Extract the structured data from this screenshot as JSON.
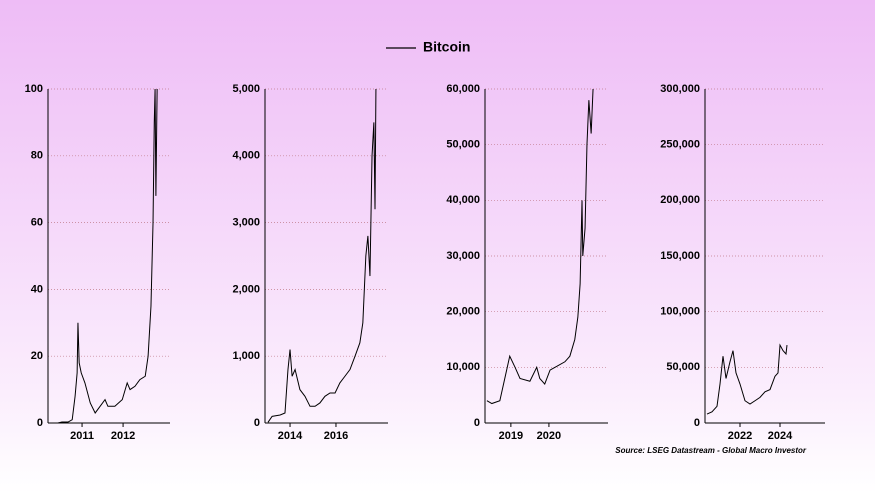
{
  "chart_data": [
    {
      "type": "line",
      "legend": "top",
      "grid": true,
      "series": [
        {
          "name": "Bitcoin",
          "color": "#000000",
          "x": [
            2010.27,
            2010.41,
            2010.51,
            2010.66,
            2010.76,
            2010.83,
            2010.88,
            2010.9,
            2010.93,
            2010.98,
            2011.07,
            2011.2,
            2011.32,
            2011.44,
            2011.56,
            2011.63,
            2011.8,
            2011.98,
            2012.1,
            2012.17,
            2012.29,
            2012.41,
            2012.54,
            2012.61,
            2012.68,
            2012.73,
            2012.76,
            2012.78,
            2012.8,
            2012.83
          ],
          "values": [
            0,
            0,
            0.3,
            0.3,
            1,
            8,
            15,
            30,
            18,
            15,
            12,
            6,
            3,
            5,
            7,
            5,
            5,
            7,
            12,
            10,
            11,
            13,
            14,
            20,
            35,
            60,
            90,
            100,
            68,
            100
          ]
        }
      ],
      "xlim": [
        2010.17,
        2012.9
      ],
      "xticks": [
        2011,
        2012
      ],
      "ylim": [
        0,
        100
      ],
      "yticks": [
        0,
        20,
        40,
        60,
        80,
        100
      ]
    },
    {
      "type": "line",
      "grid": true,
      "series": [
        {
          "color": "#000000",
          "x": [
            2013.04,
            2013.22,
            2013.57,
            2013.78,
            2013.91,
            2014,
            2014.09,
            2014.22,
            2014.43,
            2014.65,
            2014.87,
            2015.09,
            2015.3,
            2015.52,
            2015.74,
            2015.96,
            2016.17,
            2016.39,
            2016.61,
            2016.83,
            2017.04,
            2017.17,
            2017.3,
            2017.39,
            2017.48,
            2017.57,
            2017.65,
            2017.7,
            2017.74
          ],
          "values": [
            10,
            100,
            120,
            150,
            800,
            1100,
            700,
            800,
            500,
            400,
            250,
            250,
            300,
            400,
            450,
            450,
            600,
            700,
            800,
            1000,
            1200,
            1500,
            2500,
            2800,
            2200,
            4000,
            4500,
            3200,
            5000
          ]
        }
      ],
      "xlim": [
        2012.91,
        2017.83
      ],
      "xticks": [
        2014,
        2016
      ],
      "ylim": [
        0,
        5000
      ],
      "yticks": [
        0,
        {
          "value": 1000,
          "label": "1,000"
        },
        {
          "value": 2000,
          "label": "2,000"
        },
        {
          "value": 3000,
          "label": "3,000"
        },
        {
          "value": 4000,
          "label": "4,000"
        },
        {
          "value": 5000,
          "label": "5,000"
        }
      ]
    },
    {
      "type": "line",
      "grid": true,
      "series": [
        {
          "color": "#000000",
          "x": [
            2018.37,
            2018.5,
            2018.71,
            2018.84,
            2018.97,
            2019.11,
            2019.24,
            2019.5,
            2019.68,
            2019.76,
            2019.89,
            2020.03,
            2020.16,
            2020.42,
            2020.55,
            2020.68,
            2020.76,
            2020.82,
            2020.87,
            2020.89,
            2020.95,
            2021,
            2021.05,
            2021.11,
            2021.16
          ],
          "values": [
            4000,
            3500,
            4000,
            8000,
            12000,
            10000,
            8000,
            7500,
            10000,
            8000,
            7000,
            9500,
            10000,
            11000,
            12000,
            15000,
            19000,
            25000,
            40000,
            30000,
            35000,
            50000,
            58000,
            52000,
            60000
          ]
        }
      ],
      "xlim": [
        2018.32,
        2021.29
      ],
      "xticks": [
        2019,
        2020
      ],
      "ylim": [
        0,
        60000
      ],
      "yticks": [
        0,
        {
          "value": 10000,
          "label": "10,000"
        },
        {
          "value": 20000,
          "label": "20,000"
        },
        {
          "value": 30000,
          "label": "30,000"
        },
        {
          "value": 40000,
          "label": "40,000"
        },
        {
          "value": 50000,
          "label": "50,000"
        },
        {
          "value": 60000,
          "label": "60,000"
        }
      ]
    },
    {
      "type": "line",
      "grid": true,
      "source": "Source: LSEG Datastream - Global Macro Investor",
      "series": [
        {
          "color": "#000000",
          "x": [
            2020.35,
            2020.6,
            2020.85,
            2021,
            2021.15,
            2021.3,
            2021.5,
            2021.65,
            2021.8,
            2022,
            2022.25,
            2022.5,
            2022.75,
            2023,
            2023.25,
            2023.5,
            2023.75,
            2023.9,
            2024,
            2024.15,
            2024.3,
            2024.35
          ],
          "values": [
            8000,
            10000,
            15000,
            35000,
            60000,
            40000,
            55000,
            65000,
            45000,
            35000,
            20000,
            17000,
            20000,
            23000,
            28000,
            30000,
            42000,
            45000,
            70000,
            65000,
            62000,
            70000
          ]
        }
      ],
      "xlim": [
        2020.25,
        2025.75
      ],
      "xticks": [
        2022,
        2024
      ],
      "ylim": [
        0,
        300000
      ],
      "yticks": [
        0,
        {
          "value": 50000,
          "label": "50,000"
        },
        {
          "value": 100000,
          "label": "100,000"
        },
        {
          "value": 150000,
          "label": "150,000"
        },
        {
          "value": 200000,
          "label": "200,000"
        },
        {
          "value": 250000,
          "label": "250,000"
        },
        {
          "value": 300000,
          "label": "300,000"
        }
      ]
    }
  ]
}
